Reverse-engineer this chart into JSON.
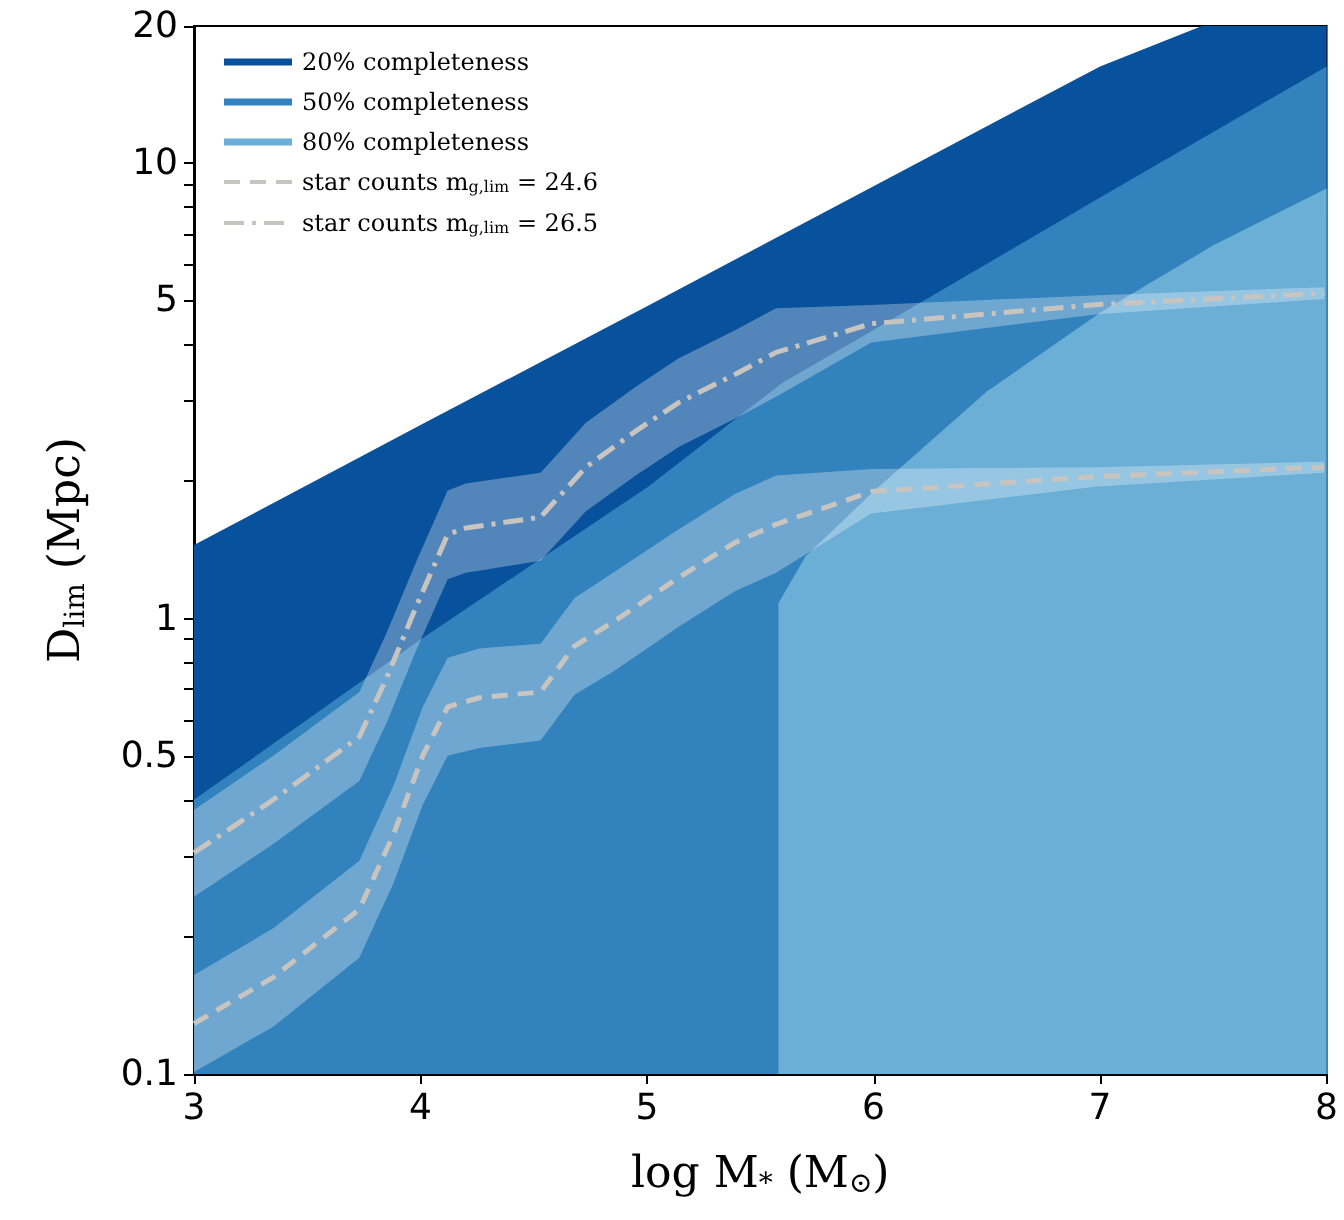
{
  "chart_data": {
    "type": "area",
    "xlabel": "log M$_{*}$ (M$_{⊙}$)",
    "ylabel": "D$_{lim}$ (Mpc)",
    "log": "y",
    "grid": false,
    "legend": "top left",
    "marker": "none",
    "xlim": [
      3,
      8
    ],
    "xticks": [
      3,
      4,
      5,
      6,
      7,
      8
    ],
    "ylim": [
      0.1,
      20
    ],
    "yticks": [
      0.1,
      {
        "value": 0.2,
        "label": null
      },
      {
        "value": 0.3,
        "label": null
      },
      {
        "value": 0.4,
        "label": null
      },
      0.5,
      {
        "value": 0.6,
        "label": null
      },
      {
        "value": 0.7,
        "label": null
      },
      {
        "value": 0.8,
        "label": null
      },
      {
        "value": 0.9,
        "label": null
      },
      1,
      {
        "value": 2,
        "label": null
      },
      {
        "value": 3,
        "label": null
      },
      {
        "value": 4,
        "label": null
      },
      5,
      {
        "value": 6,
        "label": null
      },
      {
        "value": 7,
        "label": null
      },
      {
        "value": 8,
        "label": null
      },
      {
        "value": 9,
        "label": null
      },
      10,
      20
    ],
    "series": [
      {
        "name": "20% completeness",
        "color": "#08519c",
        "x": [
          3,
          4,
          5,
          6,
          7,
          7.45,
          8
        ],
        "values": [
          1.45,
          2.66,
          4.85,
          8.9,
          16.3,
          20,
          20
        ]
      },
      {
        "name": "50% completeness",
        "color": "#3182bd",
        "x": [
          3,
          4,
          5,
          5.6,
          6,
          7,
          8
        ],
        "values": [
          0.4,
          0.9,
          1.94,
          3.3,
          4.3,
          8.4,
          16.3
        ]
      },
      {
        "name": "80% completeness",
        "color": "#6baed6",
        "x": [
          5.58,
          5.7,
          6,
          6.5,
          7,
          7.5,
          8
        ],
        "values": [
          1.08,
          1.37,
          1.9,
          3.15,
          4.69,
          6.6,
          8.8
        ]
      },
      {
        "name": "star counts m$_{g,lim}$ = 24.6",
        "type": "line",
        "color": "#c8c4c0",
        "line_style": "dashed",
        "x": [
          3,
          3.35,
          3.73,
          3.88,
          4.01,
          4.12,
          4.26,
          4.53,
          4.68,
          4.86,
          5.14,
          5.39,
          5.57,
          5.99,
          6.99,
          7.99
        ],
        "values": [
          0.129,
          0.163,
          0.23,
          0.335,
          0.5,
          0.64,
          0.67,
          0.69,
          0.87,
          0.99,
          1.23,
          1.47,
          1.61,
          1.9,
          2.05,
          2.15
        ],
        "upper": [
          0.165,
          0.209,
          0.294,
          0.429,
          0.64,
          0.82,
          0.86,
          0.88,
          1.11,
          1.27,
          1.57,
          1.88,
          2.06,
          2.13,
          2.15,
          2.21
        ],
        "lower": [
          0.101,
          0.127,
          0.18,
          0.262,
          0.39,
          0.5,
          0.52,
          0.54,
          0.68,
          0.77,
          0.96,
          1.15,
          1.26,
          1.7,
          1.95,
          2.09
        ]
      },
      {
        "name": "star counts m$_{g,lim}$ = 26.5",
        "type": "line",
        "color": "#c8c4c0",
        "line_style": "dashdot",
        "x": [
          3,
          3.35,
          3.73,
          3.85,
          3.98,
          4.12,
          4.2,
          4.53,
          4.73,
          4.95,
          5.14,
          5.39,
          5.57,
          5.99,
          6.99,
          7.99
        ],
        "values": [
          0.306,
          0.4,
          0.55,
          0.74,
          1.06,
          1.53,
          1.58,
          1.67,
          2.15,
          2.58,
          2.98,
          3.44,
          3.84,
          4.44,
          4.89,
          5.18
        ],
        "upper": [
          0.38,
          0.5,
          0.69,
          0.93,
          1.33,
          1.91,
          1.98,
          2.09,
          2.69,
          3.23,
          3.73,
          4.3,
          4.8,
          4.88,
          5.13,
          5.34
        ],
        "lower": [
          0.245,
          0.32,
          0.44,
          0.59,
          0.85,
          1.22,
          1.26,
          1.34,
          1.72,
          2.06,
          2.38,
          2.75,
          3.07,
          4.04,
          4.66,
          5.03
        ]
      }
    ]
  }
}
